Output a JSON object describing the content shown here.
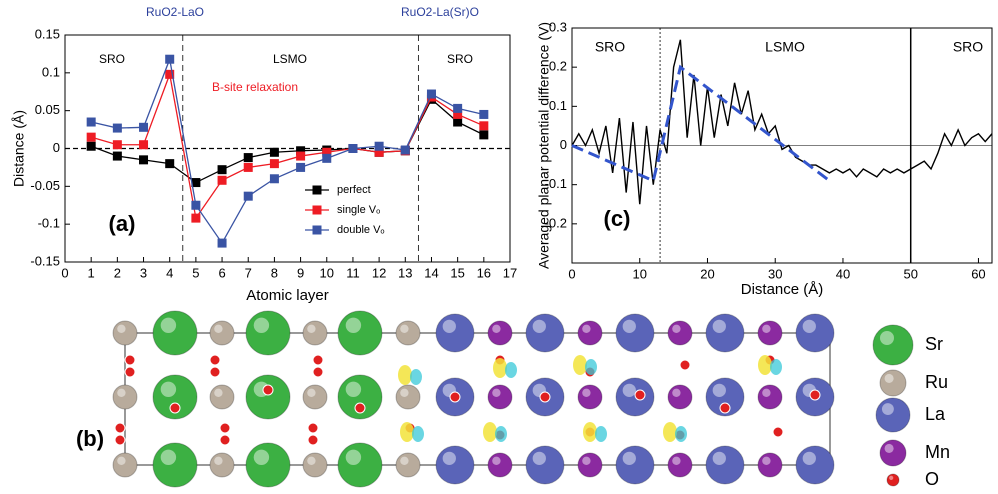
{
  "chart_data": [
    {
      "type": "line",
      "xlabel": "Atomic layer",
      "ylabel": "Distance (Å)",
      "x": [
        1,
        2,
        3,
        4,
        5,
        6,
        7,
        8,
        9,
        10,
        11,
        12,
        13,
        14,
        15,
        16
      ],
      "xlim": [
        0,
        17
      ],
      "xticks": [
        0,
        1,
        2,
        3,
        4,
        5,
        6,
        7,
        8,
        9,
        10,
        11,
        12,
        13,
        14,
        15,
        16,
        17
      ],
      "ylim": [
        -0.15,
        0.15
      ],
      "yticks": [
        -0.15,
        -0.1,
        -0.05,
        0,
        0.05,
        0.1,
        0.15
      ],
      "zero_line": true,
      "boundaries": [
        4.5,
        13.5
      ],
      "annotations": [
        "RuO2-LaO",
        "RuO2-La(Sr)O",
        "SRO",
        "LSMO",
        "SRO",
        "B-site relaxation",
        "(a)"
      ],
      "legend": "lower-center",
      "series": [
        {
          "name": "perfect",
          "color": "#000000",
          "values": [
            0.003,
            -0.01,
            -0.015,
            -0.02,
            -0.045,
            -0.028,
            -0.012,
            -0.005,
            -0.003,
            -0.002,
            0,
            -0.005,
            -0.003,
            0.065,
            0.035,
            0.018
          ]
        },
        {
          "name": "single Vₒ",
          "color": "#ee1c24",
          "values": [
            0.015,
            0.005,
            0.005,
            0.098,
            -0.092,
            -0.042,
            -0.025,
            -0.02,
            -0.01,
            -0.005,
            0,
            -0.005,
            -0.003,
            0.068,
            0.045,
            0.03
          ]
        },
        {
          "name": "double Vₒ",
          "color": "#3a54a4",
          "values": [
            0.035,
            0.027,
            0.028,
            0.118,
            -0.075,
            -0.125,
            -0.063,
            -0.04,
            -0.025,
            -0.013,
            0,
            0.003,
            -0.002,
            0.072,
            0.053,
            0.045
          ]
        }
      ]
    },
    {
      "type": "line",
      "xlabel": "Distance (Å)",
      "ylabel": "Averaged planar potential difference (V)",
      "x": [
        0,
        1,
        2,
        3,
        4,
        5,
        6,
        7,
        8,
        9,
        10,
        11,
        12,
        13,
        14,
        15,
        16,
        17,
        18,
        19,
        20,
        21,
        22,
        23,
        24,
        25,
        26,
        27,
        28,
        29,
        30,
        31,
        32,
        33,
        34,
        35,
        36,
        37,
        38,
        39,
        40,
        41,
        42,
        43,
        44,
        45,
        46,
        47,
        48,
        49,
        50,
        51,
        52,
        53,
        54,
        55,
        56,
        57,
        58,
        59,
        60,
        61,
        62
      ],
      "xlim": [
        0,
        62
      ],
      "xticks": [
        0,
        10,
        20,
        30,
        40,
        50,
        60
      ],
      "ylim": [
        -0.3,
        0.3
      ],
      "yticks": [
        -0.2,
        -0.1,
        0,
        0.1,
        0.2,
        0.3
      ],
      "zero_line": true,
      "boundaries": [
        13,
        50
      ],
      "annotations": [
        "SRO",
        "LSMO",
        "SRO",
        "(c)"
      ],
      "series": [
        {
          "color": "#000000",
          "values": [
            0,
            0.03,
            0,
            0.04,
            -0.02,
            0.05,
            -0.07,
            0.07,
            -0.12,
            0.06,
            -0.15,
            0.05,
            -0.1,
            0.04,
            -0.02,
            0.2,
            0.27,
            0.02,
            0.18,
            0,
            0.15,
            0.02,
            0.13,
            0.05,
            0.16,
            0.08,
            0.14,
            0.04,
            0.08,
            0.03,
            0.05,
            -0.01,
            0,
            -0.03,
            -0.04,
            -0.05,
            -0.05,
            -0.06,
            -0.07,
            -0.06,
            -0.07,
            -0.06,
            -0.08,
            -0.06,
            -0.07,
            -0.08,
            -0.06,
            -0.07,
            -0.06,
            -0.07,
            -0.06,
            -0.05,
            -0.04,
            -0.06,
            -0.02,
            0.03,
            0,
            0.04,
            0,
            0.02,
            0.03,
            0.01,
            0.03
          ]
        }
      ],
      "trend_line": {
        "color": "#3355cc",
        "x": [
          0,
          12,
          16,
          38
        ],
        "values": [
          0,
          -0.09,
          0.2,
          -0.09
        ]
      }
    }
  ],
  "structure": {
    "label": "(b)",
    "legend": [
      {
        "name": "Sr",
        "color": "#3cb043"
      },
      {
        "name": "Ru",
        "color": "#b8ab9c"
      },
      {
        "name": "La",
        "color": "#5a64b8"
      },
      {
        "name": "Mn",
        "color": "#8b2aa0"
      },
      {
        "name": "O",
        "color": "#e02020"
      }
    ]
  }
}
